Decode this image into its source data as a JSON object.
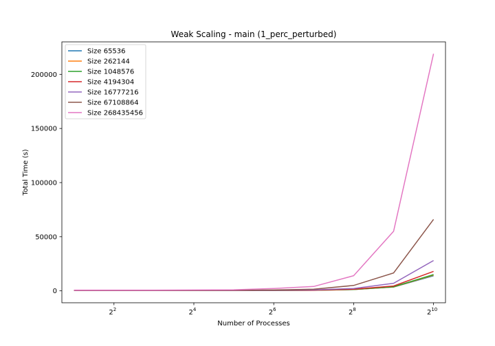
{
  "chart_data": {
    "type": "line",
    "title": "Weak Scaling - main (1_perc_perturbed)",
    "xlabel": "Number of Processes",
    "ylabel": "Total Time (s)",
    "x_scale": "log2",
    "x": [
      2,
      4,
      8,
      16,
      32,
      64,
      128,
      256,
      512,
      1024
    ],
    "xlim": [
      1.62,
      1260
    ],
    "ylim": [
      -11000,
      230000
    ],
    "x_ticks": [
      {
        "value": 4,
        "base": "2",
        "exp": "2"
      },
      {
        "value": 16,
        "base": "2",
        "exp": "4"
      },
      {
        "value": 64,
        "base": "2",
        "exp": "6"
      },
      {
        "value": 256,
        "base": "2",
        "exp": "8"
      },
      {
        "value": 1024,
        "base": "2",
        "exp": "10"
      }
    ],
    "y_ticks": [
      {
        "value": 0,
        "label": "0"
      },
      {
        "value": 50000,
        "label": "50000"
      },
      {
        "value": 100000,
        "label": "100000"
      },
      {
        "value": 150000,
        "label": "150000"
      },
      {
        "value": 200000,
        "label": "200000"
      }
    ],
    "legend_position": "top-left",
    "grid": false,
    "series": [
      {
        "name": "Size 65536",
        "color": "#1f77b4",
        "values": [
          300,
          300,
          300,
          300,
          300,
          350,
          500,
          1200,
          3500,
          14000
        ]
      },
      {
        "name": "Size 262144",
        "color": "#ff7f0e",
        "values": [
          300,
          300,
          300,
          300,
          300,
          350,
          500,
          1200,
          3600,
          14500
        ]
      },
      {
        "name": "Size 1048576",
        "color": "#2ca02c",
        "values": [
          300,
          300,
          300,
          300,
          300,
          350,
          550,
          1300,
          3800,
          15000
        ]
      },
      {
        "name": "Size 4194304",
        "color": "#d62728",
        "values": [
          300,
          300,
          300,
          300,
          300,
          400,
          600,
          1500,
          4500,
          18000
        ]
      },
      {
        "name": "Size 16777216",
        "color": "#9467bd",
        "values": [
          350,
          350,
          350,
          350,
          350,
          500,
          900,
          2200,
          7000,
          28000
        ]
      },
      {
        "name": "Size 67108864",
        "color": "#8c564b",
        "values": [
          400,
          400,
          400,
          400,
          450,
          800,
          1500,
          5000,
          16500,
          66000
        ]
      },
      {
        "name": "Size 268435456",
        "color": "#e377c2",
        "values": [
          700,
          700,
          700,
          800,
          1000,
          2200,
          4000,
          14000,
          55000,
          219000
        ]
      }
    ]
  }
}
